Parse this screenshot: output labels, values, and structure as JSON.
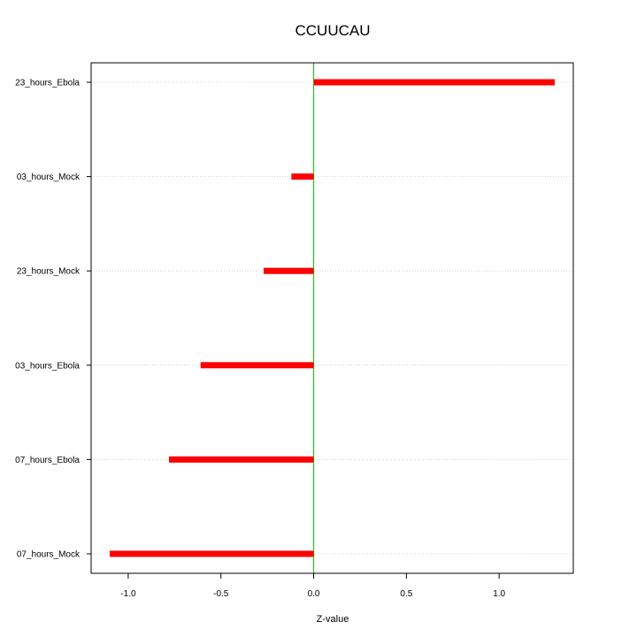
{
  "chart_data": {
    "type": "bar",
    "orientation": "horizontal",
    "title": "CCUUCAU",
    "xlabel": "Z-value",
    "ylabel": "",
    "categories": [
      "07_hours_Mock",
      "07_hours_Ebola",
      "03_hours_Ebola",
      "23_hours_Mock",
      "03_hours_Mock",
      "23_hours_Ebola"
    ],
    "values": [
      -1.1,
      -0.78,
      -0.61,
      -0.27,
      -0.12,
      1.3
    ],
    "xlim": [
      -1.2,
      1.4
    ],
    "xticks": [
      -1.0,
      -0.5,
      0.0,
      0.5,
      1.0
    ],
    "xtick_labels": [
      "-1.0",
      "-0.5",
      "0.0",
      "0.5",
      "1.0"
    ],
    "reference_line": 0,
    "grid": "horizontal dotted",
    "colors": {
      "bar": "#ff0000",
      "reference_line": "#00cc00",
      "grid": "#c8c8c8"
    }
  }
}
